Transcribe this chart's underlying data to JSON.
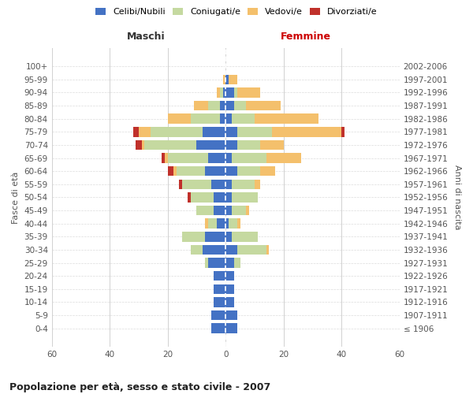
{
  "age_groups": [
    "100+",
    "95-99",
    "90-94",
    "85-89",
    "80-84",
    "75-79",
    "70-74",
    "65-69",
    "60-64",
    "55-59",
    "50-54",
    "45-49",
    "40-44",
    "35-39",
    "30-34",
    "25-29",
    "20-24",
    "15-19",
    "10-14",
    "5-9",
    "0-4"
  ],
  "birth_years": [
    "≤ 1906",
    "1907-1911",
    "1912-1916",
    "1917-1921",
    "1922-1926",
    "1927-1931",
    "1932-1936",
    "1937-1941",
    "1942-1946",
    "1947-1951",
    "1952-1956",
    "1957-1961",
    "1962-1966",
    "1967-1971",
    "1972-1976",
    "1977-1981",
    "1982-1986",
    "1987-1991",
    "1992-1996",
    "1997-2001",
    "2002-2006"
  ],
  "maschi": {
    "celibi": [
      0,
      0,
      1,
      2,
      2,
      8,
      10,
      6,
      7,
      5,
      4,
      4,
      3,
      7,
      8,
      6,
      4,
      4,
      4,
      5,
      5
    ],
    "coniugati": [
      0,
      0,
      1,
      4,
      10,
      18,
      18,
      14,
      10,
      10,
      8,
      6,
      3,
      8,
      4,
      1,
      0,
      0,
      0,
      0,
      0
    ],
    "vedovi": [
      0,
      1,
      1,
      5,
      8,
      4,
      1,
      1,
      1,
      0,
      0,
      0,
      1,
      0,
      0,
      0,
      0,
      0,
      0,
      0,
      0
    ],
    "divorziati": [
      0,
      0,
      0,
      0,
      0,
      2,
      2,
      1,
      2,
      1,
      1,
      0,
      0,
      0,
      0,
      0,
      0,
      0,
      0,
      0,
      0
    ]
  },
  "femmine": {
    "nubili": [
      0,
      1,
      3,
      3,
      2,
      4,
      4,
      2,
      4,
      2,
      2,
      2,
      1,
      2,
      4,
      3,
      3,
      3,
      3,
      4,
      4
    ],
    "coniugate": [
      0,
      0,
      1,
      4,
      8,
      12,
      8,
      12,
      8,
      8,
      9,
      5,
      3,
      9,
      10,
      2,
      0,
      0,
      0,
      0,
      0
    ],
    "vedove": [
      0,
      3,
      8,
      12,
      22,
      24,
      8,
      12,
      5,
      2,
      0,
      1,
      1,
      0,
      1,
      0,
      0,
      0,
      0,
      0,
      0
    ],
    "divorziate": [
      0,
      0,
      0,
      0,
      0,
      1,
      0,
      0,
      0,
      0,
      0,
      0,
      0,
      0,
      0,
      0,
      0,
      0,
      0,
      0,
      0
    ]
  },
  "colors": {
    "celibi_nubili": "#4472C4",
    "coniugati": "#C5D9A0",
    "vedovi": "#F4C06C",
    "divorziati": "#C0312B"
  },
  "xlim": 60,
  "title": "Popolazione per età, sesso e stato civile - 2007",
  "ylabel_left": "Fasce di età",
  "ylabel_right": "Anni di nascita",
  "xlabel_left": "Maschi",
  "xlabel_right": "Femmine",
  "bg_color": "#ffffff",
  "grid_color": "#cccccc"
}
